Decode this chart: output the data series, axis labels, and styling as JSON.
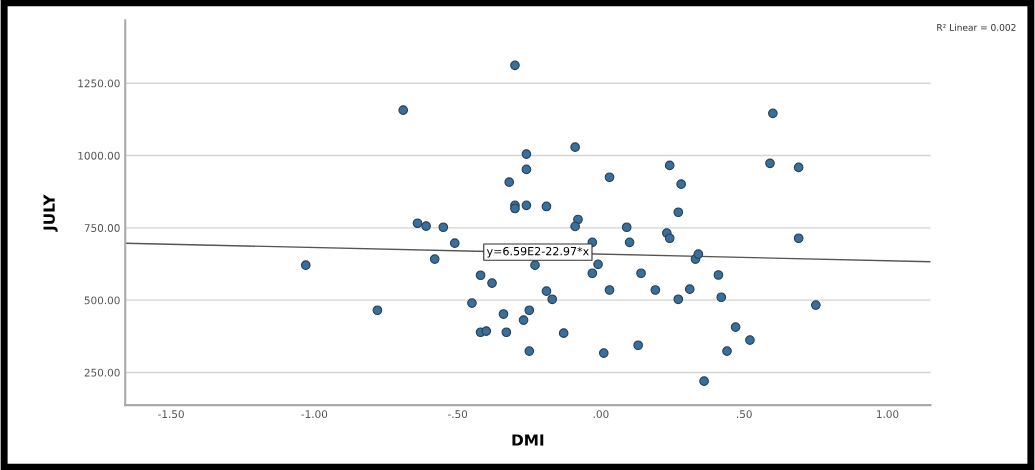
{
  "chart_data": {
    "type": "scatter",
    "xlabel": "DMI",
    "ylabel": "JULY",
    "xlim": [
      -1.66,
      1.15
    ],
    "ylim": [
      137,
      1468
    ],
    "xticks": [
      {
        "value": -1.5,
        "label": "-1.50"
      },
      {
        "value": -1.0,
        "label": "-1.00"
      },
      {
        "value": -0.5,
        "label": "-.50"
      },
      {
        "value": 0,
        "label": ".00"
      },
      {
        "value": 0.5,
        "label": ".50"
      },
      {
        "value": 1.0,
        "label": "1.00"
      }
    ],
    "yticks": [
      {
        "value": 250,
        "label": "250.00"
      },
      {
        "value": 500,
        "label": "500.00"
      },
      {
        "value": 750,
        "label": "750.00"
      },
      {
        "value": 1000,
        "label": "1000.00"
      },
      {
        "value": 1250,
        "label": "1250.00"
      }
    ],
    "grid": "y",
    "marker": "circle",
    "series": [
      {
        "color": "#3b6e98",
        "x": [
          -0.3,
          -0.69,
          0.6,
          -0.09,
          -0.26,
          0.03,
          -0.26,
          -0.32,
          0.24,
          0.59,
          0.69,
          0.28,
          -0.3,
          -0.3,
          -0.26,
          -0.19,
          0.27,
          -0.64,
          -0.61,
          -0.55,
          -0.51,
          -0.58,
          -1.03,
          -0.08,
          -0.09,
          0.09,
          0.1,
          0.23,
          0.24,
          -0.03,
          -0.01,
          -0.03,
          0.14,
          0.03,
          0.33,
          0.34,
          0.31,
          0.41,
          0.42,
          0.27,
          0.19,
          0.47,
          0.52,
          0.44,
          0.13,
          0.01,
          0.36,
          0.75,
          0.69,
          -0.78,
          -0.45,
          -0.42,
          -0.38,
          -0.34,
          -0.42,
          -0.4,
          -0.33,
          -0.25,
          -0.27,
          -0.25,
          -0.19,
          -0.17,
          -0.13,
          -0.23
        ],
        "values": [
          1312,
          1157,
          1146,
          1029,
          1005,
          925,
          952,
          908,
          966,
          973,
          959,
          901,
          828,
          817,
          828,
          824,
          804,
          766,
          756,
          752,
          697,
          642,
          621,
          779,
          755,
          752,
          700,
          732,
          714,
          700,
          624,
          593,
          593,
          535,
          642,
          659,
          538,
          587,
          510,
          503,
          535,
          407,
          362,
          324,
          344,
          317,
          220,
          483,
          714,
          465,
          490,
          586,
          559,
          452,
          389,
          393,
          389,
          465,
          431,
          324,
          531,
          503,
          386,
          621
        ]
      },
      {
        "type": "line",
        "color": "#555555",
        "marker": "none",
        "x": [
          -1.66,
          1.15
        ],
        "values": [
          697,
          633
        ]
      }
    ],
    "annotations": [
      {
        "text": "y=6.59E2-22.97*x",
        "x": -0.22,
        "y": 666
      },
      "R² Linear = 0.002"
    ]
  }
}
